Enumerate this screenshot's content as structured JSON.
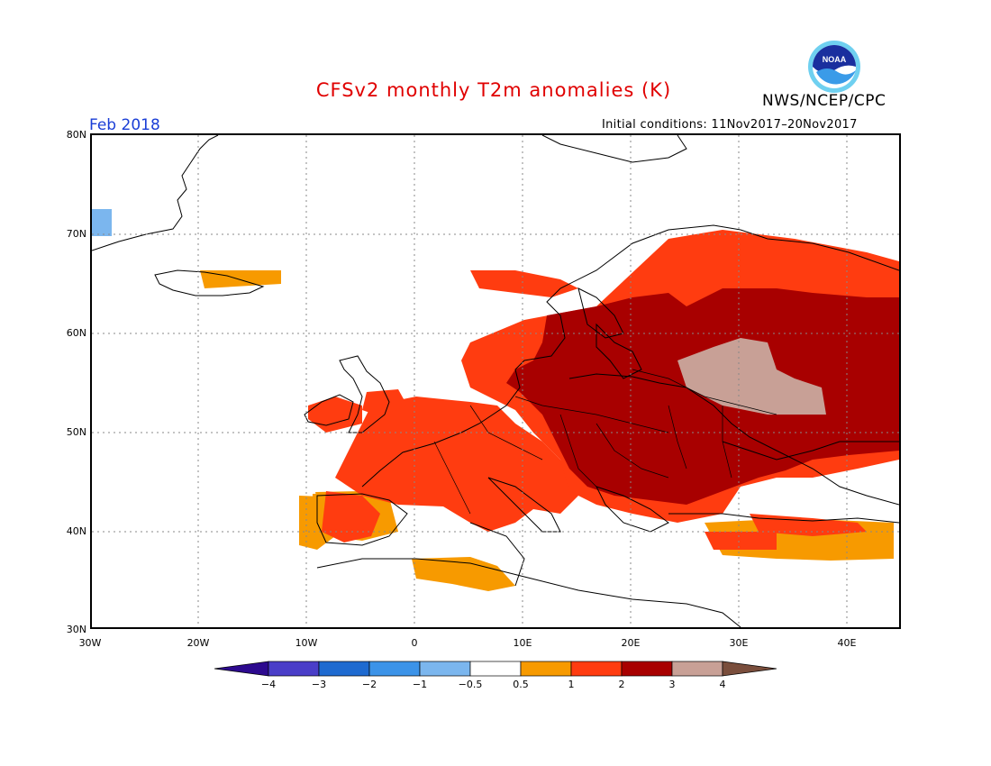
{
  "title": "CFSv2 monthly T2m anomalies (K)",
  "agency": "NWS/NCEP/CPC",
  "logo_text": "NOAA",
  "valid_month": "Feb 2018",
  "initial_conditions": "Initial conditions: 11Nov2017–20Nov2017",
  "lat_labels": [
    "80N",
    "70N",
    "60N",
    "50N",
    "40N",
    "30N"
  ],
  "lon_labels": [
    "30W",
    "20W",
    "10W",
    "0",
    "10E",
    "20E",
    "30E",
    "40E"
  ],
  "colorbar": {
    "labels": [
      "−4",
      "−3",
      "−2",
      "−1",
      "−0.5",
      "0.5",
      "1",
      "2",
      "3",
      "4"
    ],
    "colors": [
      "#2d0a8f",
      "#4a3ec8",
      "#1e6ad0",
      "#3c93e8",
      "#7bb6ee",
      "#ffffff",
      "#f79a00",
      "#ff3c10",
      "#a80000",
      "#c8a096",
      "#7a4e3c"
    ]
  },
  "colors": {
    "title": "#e00000",
    "month": "#1a3ed6"
  }
}
